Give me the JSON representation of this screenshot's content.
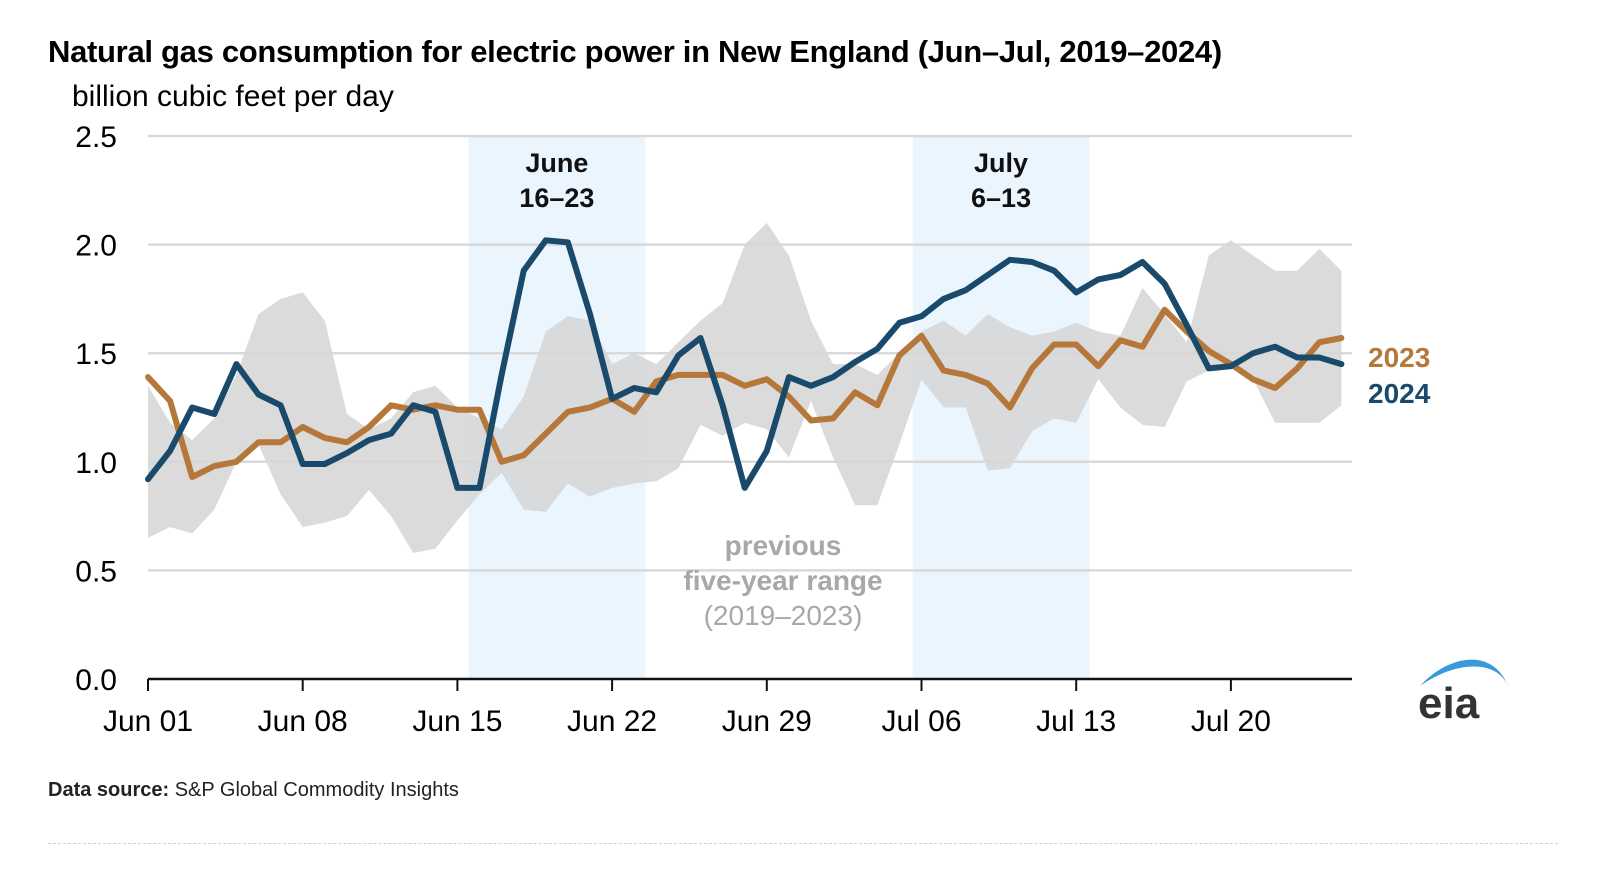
{
  "header": {
    "title": "Natural gas consumption for electric power in New England (Jun–Jul, 2019–2024)",
    "subtitle": "billion cubic feet per day"
  },
  "footer": {
    "source_label": "Data source:",
    "source_text": "S&P Global Commodity Insights"
  },
  "logo": {
    "text": "eia",
    "arc_color": "#3a9ad9",
    "text_color": "#333333"
  },
  "chart_data": {
    "type": "line",
    "title": "Natural gas consumption for electric power in New England (Jun–Jul, 2019–2024)",
    "ylabel": "billion cubic feet per day",
    "xlabel": "",
    "ylim": [
      0,
      2.5
    ],
    "yticks": [
      0.0,
      0.5,
      1.0,
      1.5,
      2.0,
      2.5
    ],
    "ytick_labels": [
      "0.0",
      "0.5",
      "1.0",
      "1.5",
      "2.0",
      "2.5"
    ],
    "x_start": "Jun 01",
    "x_day_count": 55,
    "xticks": [
      0,
      7,
      14,
      21,
      28,
      35,
      42,
      49
    ],
    "xtick_labels": [
      "Jun 01",
      "Jun 08",
      "Jun 15",
      "Jun 22",
      "Jun 29",
      "Jul 06",
      "Jul 13",
      "Jul 20"
    ],
    "grid": true,
    "highlights": [
      {
        "label_line1": "June",
        "label_line2": "16–23",
        "start_day": 14.5,
        "end_day": 22.5
      },
      {
        "label_line1": "July",
        "label_line2": "6–13",
        "start_day": 34.6,
        "end_day": 42.6
      }
    ],
    "range": {
      "name": "previous five-year range (2019–2023)",
      "label_lines": [
        "previous",
        "five-year range",
        "(2019–2023)"
      ],
      "color": "#d6d6d6",
      "upper": [
        1.35,
        1.18,
        1.1,
        1.2,
        1.4,
        1.68,
        1.75,
        1.78,
        1.65,
        1.22,
        1.15,
        1.2,
        1.32,
        1.35,
        1.25,
        1.2,
        1.15,
        1.3,
        1.6,
        1.67,
        1.65,
        1.45,
        1.5,
        1.45,
        1.55,
        1.65,
        1.73,
        2.0,
        2.1,
        1.95,
        1.65,
        1.45,
        1.45,
        1.4,
        1.5,
        1.6,
        1.65,
        1.58,
        1.68,
        1.62,
        1.58,
        1.6,
        1.64,
        1.6,
        1.58,
        1.8,
        1.68,
        1.55,
        1.95,
        2.02,
        1.95,
        1.88,
        1.88,
        1.98,
        1.88
      ],
      "lower": [
        0.65,
        0.7,
        0.67,
        0.78,
        1.0,
        1.08,
        0.85,
        0.7,
        0.72,
        0.75,
        0.87,
        0.75,
        0.58,
        0.6,
        0.73,
        0.85,
        0.95,
        0.78,
        0.77,
        0.9,
        0.84,
        0.88,
        0.9,
        0.91,
        0.97,
        1.17,
        1.12,
        1.18,
        1.15,
        1.02,
        1.28,
        1.02,
        0.8,
        0.8,
        1.08,
        1.38,
        1.25,
        1.25,
        0.96,
        0.97,
        1.14,
        1.2,
        1.18,
        1.38,
        1.25,
        1.17,
        1.16,
        1.37,
        1.42,
        1.45,
        1.38,
        1.18,
        1.18,
        1.18,
        1.26
      ]
    },
    "series": [
      {
        "name": "2023",
        "color": "#b5773a",
        "values": [
          1.39,
          1.28,
          0.93,
          0.98,
          1.0,
          1.09,
          1.09,
          1.16,
          1.11,
          1.09,
          1.16,
          1.26,
          1.24,
          1.26,
          1.24,
          1.24,
          1.0,
          1.03,
          1.13,
          1.23,
          1.25,
          1.29,
          1.23,
          1.37,
          1.4,
          1.4,
          1.4,
          1.35,
          1.38,
          1.3,
          1.19,
          1.2,
          1.32,
          1.26,
          1.49,
          1.58,
          1.42,
          1.4,
          1.36,
          1.25,
          1.43,
          1.54,
          1.54,
          1.44,
          1.56,
          1.53,
          1.7,
          1.6,
          1.51,
          1.45,
          1.38,
          1.34,
          1.43,
          1.55,
          1.57
        ]
      },
      {
        "name": "2024",
        "color": "#1a4a6b",
        "values": [
          0.92,
          1.05,
          1.25,
          1.22,
          1.45,
          1.31,
          1.26,
          0.99,
          0.99,
          1.04,
          1.1,
          1.13,
          1.26,
          1.23,
          0.88,
          0.88,
          1.4,
          1.88,
          2.02,
          2.01,
          1.68,
          1.29,
          1.34,
          1.32,
          1.49,
          1.57,
          1.26,
          0.88,
          1.05,
          1.39,
          1.35,
          1.39,
          1.46,
          1.52,
          1.64,
          1.67,
          1.75,
          1.79,
          1.86,
          1.93,
          1.92,
          1.88,
          1.78,
          1.84,
          1.86,
          1.92,
          1.82,
          1.63,
          1.43,
          1.44,
          1.5,
          1.53,
          1.48,
          1.48,
          1.45
        ]
      }
    ],
    "legend": "right (inline labels at line ends)"
  }
}
